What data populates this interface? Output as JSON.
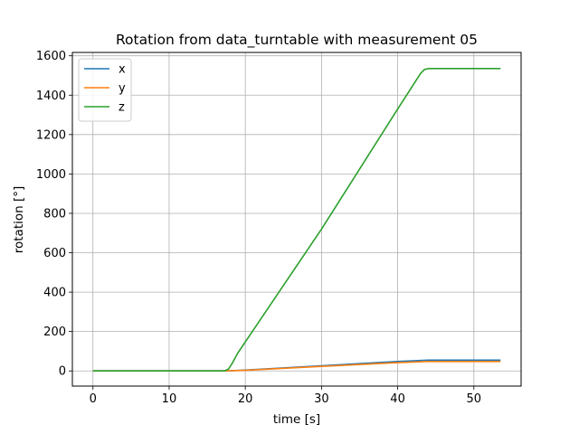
{
  "chart_data": {
    "type": "line",
    "title": "Rotation from data_turntable with measurement 05",
    "xlabel": "time [s]",
    "ylabel": "rotation [°]",
    "xlim": [
      -2.7,
      56.2
    ],
    "ylim": [
      -77,
      1617
    ],
    "xticks": [
      0,
      10,
      20,
      30,
      40,
      50
    ],
    "yticks": [
      0,
      200,
      400,
      600,
      800,
      1000,
      1200,
      1400,
      1600
    ],
    "grid": true,
    "legend_position": "top-left",
    "series": [
      {
        "name": "x",
        "color": "#1f77b4",
        "x": [
          0,
          17.5,
          20,
          30,
          40,
          44,
          53.5
        ],
        "y": [
          0,
          0,
          4,
          26,
          48,
          55,
          55
        ]
      },
      {
        "name": "y",
        "color": "#ff7f0e",
        "x": [
          0,
          17.5,
          20,
          30,
          40,
          44,
          53.5
        ],
        "y": [
          0,
          0,
          3,
          23,
          42,
          48,
          48
        ]
      },
      {
        "name": "z",
        "color": "#2ca02c",
        "x": [
          0,
          17.3,
          17.8,
          18.3,
          19,
          30,
          40,
          43,
          43.5,
          44,
          53.5
        ],
        "y": [
          0,
          0,
          10,
          40,
          90,
          720,
          1330,
          1510,
          1530,
          1535,
          1535
        ]
      }
    ]
  }
}
